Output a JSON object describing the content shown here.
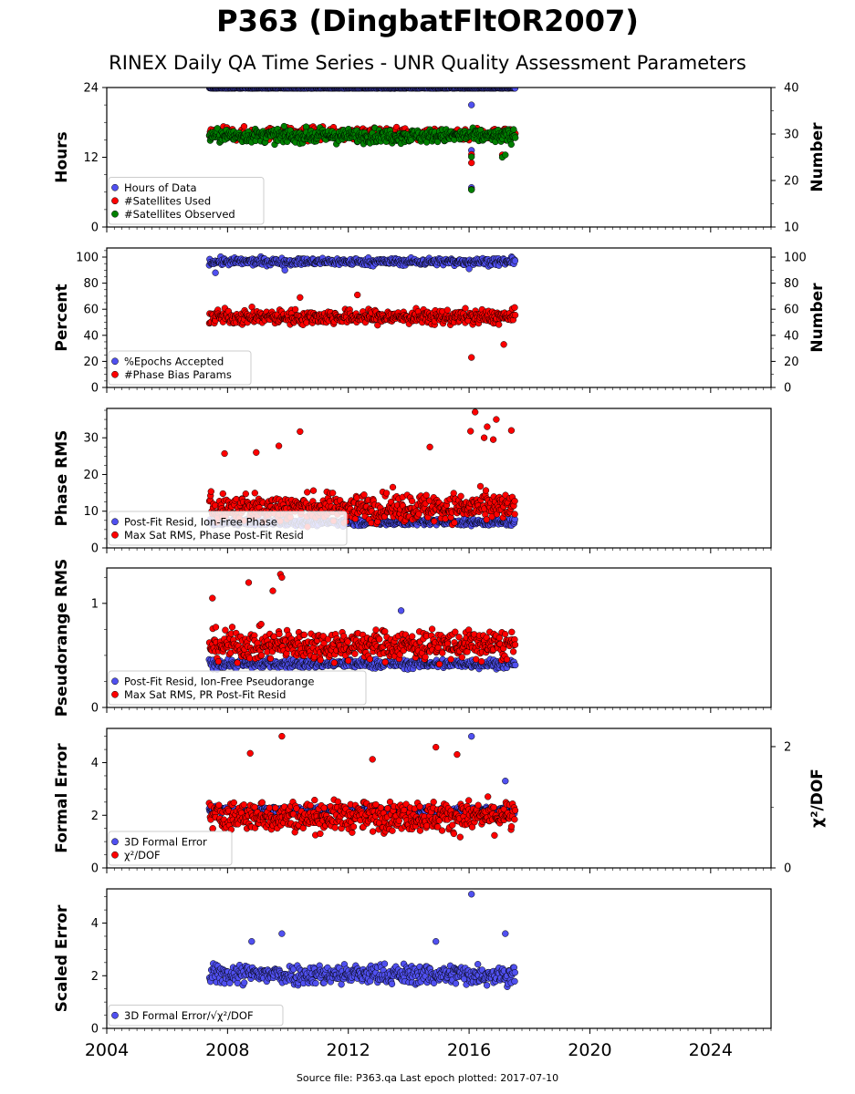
{
  "title": "P363 (DingbatFltOR2007)",
  "subtitle": "RINEX Daily QA Time Series - UNR Quality Assessment Parameters",
  "footer": "Source file: P363.qa Last epoch plotted: 2017-07-10",
  "colors": {
    "blue": "#5050f0",
    "red": "#ff0000",
    "green": "#008000",
    "edge": "#000000"
  },
  "chart_data": [
    {
      "type": "scatter",
      "panel": "hours",
      "ylabel": "Hours",
      "ylabel_right": "Number",
      "xlim": [
        2004,
        2026
      ],
      "ylim": [
        0,
        24
      ],
      "ylim_right": [
        10,
        40
      ],
      "yticks": [
        "0",
        "12",
        "24"
      ],
      "yticks_right": [
        "10",
        "20",
        "30",
        "40"
      ],
      "legend_position": "lower-left",
      "series": [
        {
          "name": "Hours of Data",
          "color": "blue",
          "axis": "left",
          "x_range": [
            2007.4,
            2017.52
          ],
          "baseline": 23.9,
          "spread": 0.05,
          "outliers": [
            [
              2016.08,
              21.0
            ],
            [
              2016.08,
              13.2
            ],
            [
              2016.08,
              6.8
            ]
          ]
        },
        {
          "name": "#Satellites Used",
          "color": "red",
          "axis": "right",
          "x_range": [
            2007.4,
            2017.52
          ],
          "baseline": 30,
          "spread": 1.2,
          "outliers": [
            [
              2016.08,
              23.8
            ],
            [
              2016.08,
              25.6
            ],
            [
              2016.08,
              18.1
            ],
            [
              2017.1,
              25.5
            ]
          ]
        },
        {
          "name": "#Satellites Observed",
          "color": "green",
          "axis": "right",
          "x_range": [
            2007.4,
            2017.52
          ],
          "baseline": 29.6,
          "spread": 1.3,
          "outliers": [
            [
              2016.08,
              18.0
            ],
            [
              2016.08,
              25.1
            ],
            [
              2017.1,
              25.0
            ],
            [
              2017.2,
              25.5
            ]
          ]
        }
      ]
    },
    {
      "type": "scatter",
      "panel": "percent",
      "ylabel": "Percent",
      "ylabel_right": "Number",
      "xlim": [
        2004,
        2026
      ],
      "ylim": [
        0,
        107
      ],
      "ylim_right": [
        0,
        107
      ],
      "yticks": [
        "0",
        "20",
        "40",
        "60",
        "80",
        "100"
      ],
      "yticks_right": [
        "0",
        "20",
        "40",
        "60",
        "80",
        "100"
      ],
      "legend_position": "lower-left",
      "series": [
        {
          "name": "%Epochs Accepted",
          "color": "blue",
          "axis": "left",
          "x_range": [
            2007.4,
            2017.52
          ],
          "baseline": 96.5,
          "spread": 2.5,
          "outliers": [
            [
              2007.6,
              88.0
            ],
            [
              2009.9,
              90.0
            ],
            [
              2016.0,
              91.0
            ]
          ]
        },
        {
          "name": "#Phase Bias Params",
          "color": "red",
          "axis": "right",
          "x_range": [
            2007.4,
            2017.52
          ],
          "baseline": 54,
          "spread": 5,
          "outliers": [
            [
              2016.08,
              23.0
            ],
            [
              2017.15,
              33.0
            ],
            [
              2010.4,
              69.0
            ],
            [
              2012.3,
              71.0
            ]
          ]
        }
      ]
    },
    {
      "type": "scatter",
      "panel": "phase",
      "ylabel": "Phase RMS",
      "xlim": [
        2004,
        2026
      ],
      "ylim": [
        0,
        38
      ],
      "yticks": [
        "0",
        "10",
        "20",
        "30"
      ],
      "legend_position": "lower-left",
      "series": [
        {
          "name": "Post-Fit Resid, Ion-Free Phase",
          "color": "blue",
          "axis": "left",
          "x_range": [
            2007.4,
            2017.52
          ],
          "baseline": 7,
          "spread": 0.8,
          "outliers": []
        },
        {
          "name": "Max Sat RMS, Phase Post-Fit Resid",
          "color": "red",
          "axis": "left",
          "x_range": [
            2007.4,
            2017.52
          ],
          "baseline": 11,
          "spread": 3.5,
          "outliers": [
            [
              2007.9,
              25.7
            ],
            [
              2008.95,
              26.0
            ],
            [
              2009.7,
              27.8
            ],
            [
              2010.4,
              31.7
            ],
            [
              2016.05,
              31.8
            ],
            [
              2016.2,
              37.0
            ],
            [
              2016.6,
              33.0
            ],
            [
              2016.9,
              35.0
            ],
            [
              2017.4,
              32.0
            ],
            [
              2014.7,
              27.5
            ],
            [
              2016.5,
              30.0
            ],
            [
              2016.8,
              29.5
            ]
          ]
        }
      ]
    },
    {
      "type": "scatter",
      "panel": "pseudorange",
      "ylabel": "Pseudorange RMS",
      "xlim": [
        2004,
        2026
      ],
      "ylim": [
        0,
        1.34
      ],
      "yticks": [
        "0",
        "1"
      ],
      "legend_position": "lower-left",
      "series": [
        {
          "name": "Post-Fit Resid, Ion-Free Pseudorange",
          "color": "blue",
          "axis": "left",
          "x_range": [
            2007.4,
            2017.52
          ],
          "baseline": 0.42,
          "spread": 0.04,
          "outliers": [
            [
              2013.75,
              0.93
            ]
          ]
        },
        {
          "name": "Max Sat RMS, PR Post-Fit Resid",
          "color": "red",
          "axis": "left",
          "x_range": [
            2007.4,
            2017.52
          ],
          "baseline": 0.6,
          "spread": 0.13,
          "outliers": [
            [
              2008.7,
              1.2
            ],
            [
              2009.75,
              1.28
            ],
            [
              2009.8,
              1.25
            ],
            [
              2009.5,
              1.12
            ],
            [
              2007.5,
              1.05
            ]
          ]
        }
      ]
    },
    {
      "type": "scatter",
      "panel": "formal",
      "ylabel": "Formal Error",
      "ylabel_right": "χ²/DOF",
      "xlim": [
        2004,
        2026
      ],
      "ylim": [
        0,
        5.3
      ],
      "ylim_right": [
        0,
        2.3
      ],
      "yticks": [
        "0",
        "2",
        "4"
      ],
      "yticks_right": [
        "0",
        "2"
      ],
      "legend_position": "lower-left",
      "series": [
        {
          "name": "3D Formal Error",
          "color": "blue",
          "axis": "left",
          "x_range": [
            2007.4,
            2017.52
          ],
          "baseline": 2.2,
          "spread": 0.1,
          "outliers": [
            [
              2016.08,
              5.0
            ],
            [
              2017.2,
              3.3
            ]
          ]
        },
        {
          "name": "χ²/DOF",
          "color": "red",
          "axis": "right",
          "x_range": [
            2007.4,
            2017.52
          ],
          "baseline": 0.85,
          "spread": 0.22,
          "outliers": [
            [
              2009.8,
              2.17
            ],
            [
              2008.75,
              1.89
            ],
            [
              2014.9,
              1.99
            ],
            [
              2012.8,
              1.79
            ],
            [
              2015.6,
              1.87
            ]
          ]
        }
      ]
    },
    {
      "type": "scatter",
      "panel": "scaled",
      "ylabel": "Scaled Error",
      "xlim": [
        2004,
        2026
      ],
      "ylim": [
        0,
        5.3
      ],
      "yticks": [
        "0",
        "2",
        "4"
      ],
      "xticks": [
        "2004",
        "2008",
        "2012",
        "2016",
        "2020",
        "2024"
      ],
      "legend_position": "lower-left",
      "series": [
        {
          "name": "3D Formal Error/√χ²/DOF",
          "color": "blue",
          "axis": "left",
          "x_range": [
            2007.4,
            2017.52
          ],
          "baseline": 2.05,
          "spread": 0.35,
          "outliers": [
            [
              2016.08,
              5.1
            ],
            [
              2009.8,
              3.6
            ],
            [
              2017.2,
              3.6
            ],
            [
              2014.9,
              3.3
            ],
            [
              2008.8,
              3.3
            ]
          ]
        }
      ]
    }
  ]
}
